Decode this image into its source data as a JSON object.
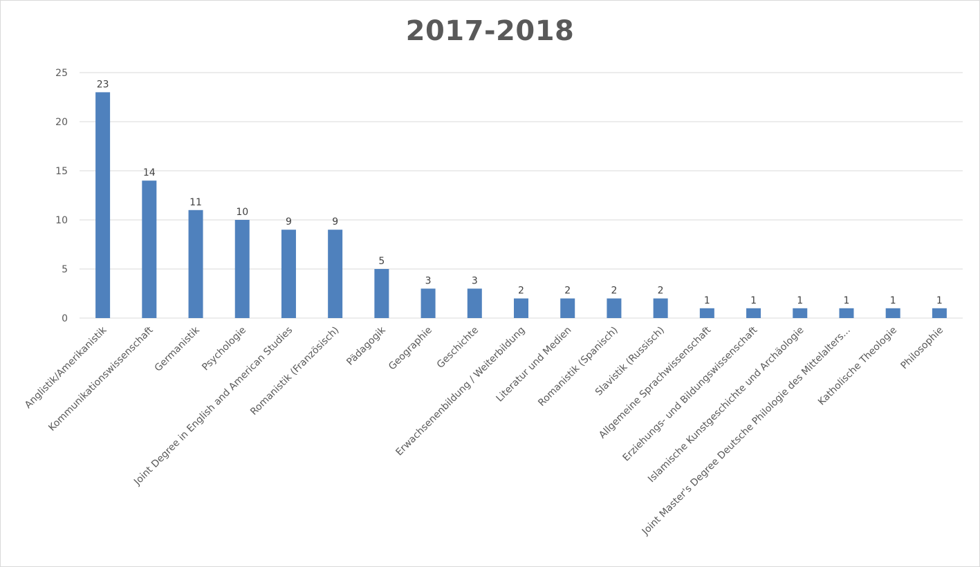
{
  "chart_data": {
    "type": "bar",
    "title": "2017-2018",
    "categories": [
      "Anglistik/Amerikanistik",
      "Kommunikationswissenschaft",
      "Germanistik",
      "Psychologie",
      "Joint Degree in English and American Studies",
      "Romanistik (Französisch)",
      "Pädagogik",
      "Geographie",
      "Geschichte",
      "Erwachsenenbildung / Weiterbildung",
      "Literatur und Medien",
      "Romanistik (Spanisch)",
      "Slavistik (Russisch)",
      "Allgemeine Sprachwissenschaft",
      "Erziehungs- und Bildungswissenschaft",
      "Islamische Kunstgeschichte und Archäologie",
      "Joint Master's Degree Deutsche Philologie des Mittelalters...",
      "Katholische Theologie",
      "Philosophie"
    ],
    "values": [
      23,
      14,
      11,
      10,
      9,
      9,
      5,
      3,
      3,
      2,
      2,
      2,
      2,
      1,
      1,
      1,
      1,
      1,
      1
    ],
    "ylim": [
      0,
      25
    ],
    "yticks": [
      0,
      5,
      10,
      15,
      20,
      25
    ],
    "xlabel": "",
    "ylabel": "",
    "grid": true,
    "data_labels": true,
    "bar_color": "#4f81bd",
    "grid_color": "#d9d9d9"
  }
}
